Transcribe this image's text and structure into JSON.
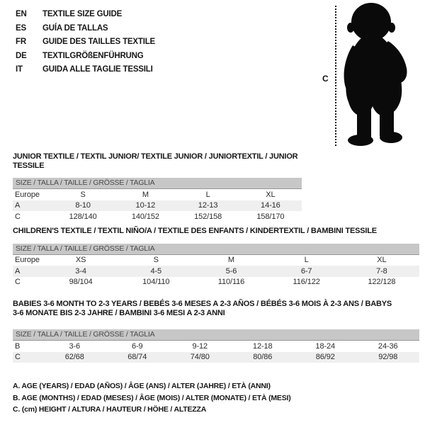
{
  "languages": [
    {
      "code": "EN",
      "title": "TEXTILE SIZE GUIDE"
    },
    {
      "code": "ES",
      "title": "GUÍA DE TALLAS"
    },
    {
      "code": "FR",
      "title": "GUIDE DES TAILLES TEXTILE"
    },
    {
      "code": "DE",
      "title": "TEXTILGRÖßENFÜHRUNG"
    },
    {
      "code": "IT",
      "title": "GUIDA ALLE TAGLIE TESSILI"
    }
  ],
  "figure": {
    "height_label": "C",
    "image": "toddler-silhouette"
  },
  "size_header": "SIZE / TALLA / TAILLE / GRÖSSE / TAGLIA",
  "sections": [
    {
      "title": "JUNIOR TEXTILE / TEXTIL JUNIOR/ TEXTILE JUNIOR / JUNIORTEXTIL / JUNIOR TESSILE",
      "rows": [
        {
          "label": "Europe",
          "values": [
            "S",
            "M",
            "L",
            "XL"
          ],
          "shaded": false
        },
        {
          "label": "A",
          "values": [
            "8-10",
            "10-12",
            "12-13",
            "14-16"
          ],
          "shaded": true
        },
        {
          "label": "C",
          "values": [
            "128/140",
            "140/152",
            "152/158",
            "158/170"
          ],
          "shaded": false
        }
      ]
    },
    {
      "title": "CHILDREN'S TEXTILE / TEXTIL NIÑO/A / TEXTILE DES ENFANTS / KINDERTEXTIL / BAMBINI TESSILE",
      "rows": [
        {
          "label": "Europe",
          "values": [
            "XS",
            "S",
            "M",
            "L",
            "XL"
          ],
          "shaded": false
        },
        {
          "label": "A",
          "values": [
            "3-4",
            "4-5",
            "5-6",
            "6-7",
            "7-8"
          ],
          "shaded": true
        },
        {
          "label": "C",
          "values": [
            "98/104",
            "104/110",
            "110/116",
            "116/122",
            "122/128"
          ],
          "shaded": false
        }
      ]
    },
    {
      "title": "BABIES 3-6 MONTH TO 2-3 YEARS / BEBÉS 3-6 MESES A 2-3 AÑOS / BÉBÉS 3-6 MOIS À 2-3 ANS / BABYS 3-6 MONATE BIS 2-3 JAHRE / BAMBINI 3-6 MESI A 2-3 ANNI",
      "rows": [
        {
          "label": "B",
          "values": [
            "3-6",
            "6-9",
            "9-12",
            "12-18",
            "18-24",
            "24-36"
          ],
          "shaded": false
        },
        {
          "label": "C",
          "values": [
            "62/68",
            "68/74",
            "74/80",
            "80/86",
            "86/92",
            "92/98"
          ],
          "shaded": true
        }
      ]
    }
  ],
  "notes": [
    "A. AGE (YEARS) / EDAD (AÑOS) / ÂGE (ANS) / ALTER (JAHRE) / ETÀ (ANNI)",
    "B. AGE (MONTHS) / EDAD (MESES) / ÂGE (MOIS) / ALTER (MONATE) / ETÀ (MESI)",
    "C. (cm) HEIGHT / ALTURA / HAUTEUR / HÖHE / ALTEZZA"
  ],
  "colors": {
    "size_bar_bg": "#c7c7c7",
    "shaded_row": "#efefef",
    "silhouette": "#0a0a0a",
    "text": "#1f1f1f"
  }
}
